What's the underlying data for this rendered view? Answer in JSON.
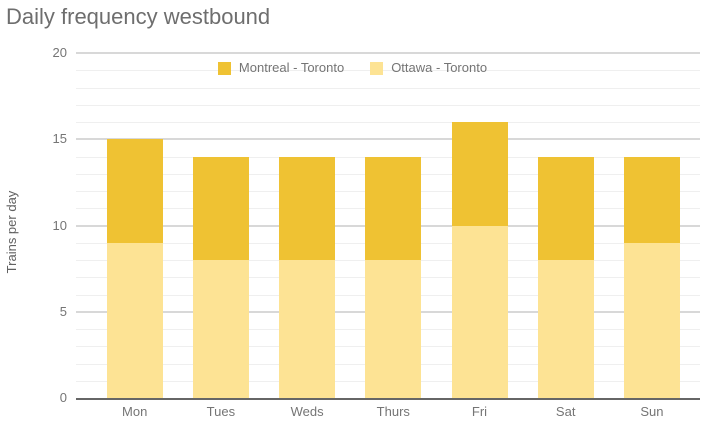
{
  "chart": {
    "title": "Daily frequency westbound",
    "y_axis_title": "Trains per day"
  },
  "colors": {
    "series_montreal": "#EFC233",
    "series_ottawa": "#FDE394",
    "title_text": "#6e6e6e",
    "axis_text": "#757575",
    "baseline": "#666666",
    "gridline_major": "#d8d8d8",
    "gridline_minor": "#efefef",
    "background": "#ffffff"
  },
  "chart_data": {
    "type": "bar",
    "stacked": true,
    "title": "Daily frequency westbound",
    "xlabel": "",
    "ylabel": "Trains per day",
    "categories": [
      "Mon",
      "Tues",
      "Weds",
      "Thurs",
      "Fri",
      "Sat",
      "Sun"
    ],
    "series": [
      {
        "name": "Montreal - Toronto",
        "color": "#EFC233",
        "stack_position": "top",
        "values": [
          6,
          6,
          6,
          6,
          6,
          6,
          5
        ]
      },
      {
        "name": "Ottawa - Toronto",
        "color": "#FDE394",
        "stack_position": "bottom",
        "values": [
          9,
          8,
          8,
          8,
          10,
          8,
          9
        ]
      }
    ],
    "stack_totals": [
      15,
      14,
      14,
      14,
      16,
      14,
      14
    ],
    "ylim": [
      0,
      20
    ],
    "y_major_ticks": [
      0,
      5,
      10,
      15,
      20
    ],
    "y_minor_tick_step": 1,
    "grid": true,
    "legend_position": "top-center"
  }
}
